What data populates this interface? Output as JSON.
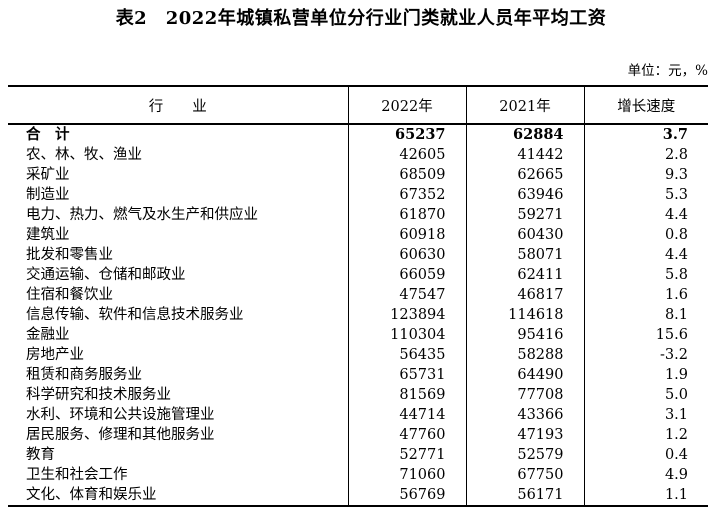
{
  "title": "表2　2022年城镇私营单位分行业门类就业人员年平均工资",
  "unit_note": "单位：元，%",
  "table": {
    "headers": {
      "industry": "行　　业",
      "y2022": "2022年",
      "y2021": "2021年",
      "growth": "增长速度"
    },
    "rows": [
      {
        "industry": "合　计",
        "y2022": "65237",
        "y2021": "62884",
        "growth": "3.7",
        "is_total": true
      },
      {
        "industry": "农、林、牧、渔业",
        "y2022": "42605",
        "y2021": "41442",
        "growth": "2.8",
        "is_total": false
      },
      {
        "industry": "采矿业",
        "y2022": "68509",
        "y2021": "62665",
        "growth": "9.3",
        "is_total": false
      },
      {
        "industry": "制造业",
        "y2022": "67352",
        "y2021": "63946",
        "growth": "5.3",
        "is_total": false
      },
      {
        "industry": "电力、热力、燃气及水生产和供应业",
        "y2022": "61870",
        "y2021": "59271",
        "growth": "4.4",
        "is_total": false
      },
      {
        "industry": "建筑业",
        "y2022": "60918",
        "y2021": "60430",
        "growth": "0.8",
        "is_total": false
      },
      {
        "industry": "批发和零售业",
        "y2022": "60630",
        "y2021": "58071",
        "growth": "4.4",
        "is_total": false
      },
      {
        "industry": "交通运输、仓储和邮政业",
        "y2022": "66059",
        "y2021": "62411",
        "growth": "5.8",
        "is_total": false
      },
      {
        "industry": "住宿和餐饮业",
        "y2022": "47547",
        "y2021": "46817",
        "growth": "1.6",
        "is_total": false
      },
      {
        "industry": "信息传输、软件和信息技术服务业",
        "y2022": "123894",
        "y2021": "114618",
        "growth": "8.1",
        "is_total": false
      },
      {
        "industry": "金融业",
        "y2022": "110304",
        "y2021": "95416",
        "growth": "15.6",
        "is_total": false
      },
      {
        "industry": "房地产业",
        "y2022": "56435",
        "y2021": "58288",
        "growth": "-3.2",
        "is_total": false
      },
      {
        "industry": "租赁和商务服务业",
        "y2022": "65731",
        "y2021": "64490",
        "growth": "1.9",
        "is_total": false
      },
      {
        "industry": "科学研究和技术服务业",
        "y2022": "81569",
        "y2021": "77708",
        "growth": "5.0",
        "is_total": false
      },
      {
        "industry": "水利、环境和公共设施管理业",
        "y2022": "44714",
        "y2021": "43366",
        "growth": "3.1",
        "is_total": false
      },
      {
        "industry": "居民服务、修理和其他服务业",
        "y2022": "47760",
        "y2021": "47193",
        "growth": "1.2",
        "is_total": false
      },
      {
        "industry": "教育",
        "y2022": "52771",
        "y2021": "52579",
        "growth": "0.4",
        "is_total": false
      },
      {
        "industry": "卫生和社会工作",
        "y2022": "71060",
        "y2021": "67750",
        "growth": "4.9",
        "is_total": false
      },
      {
        "industry": "文化、体育和娱乐业",
        "y2022": "56769",
        "y2021": "56171",
        "growth": "1.1",
        "is_total": false
      }
    ]
  }
}
